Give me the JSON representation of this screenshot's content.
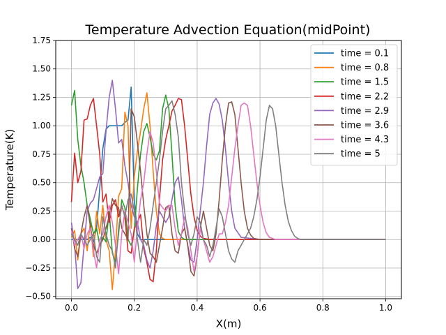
{
  "chart_data": {
    "type": "line",
    "title": "Temperature Advection Equation(midPoint)",
    "xlabel": "X(m)",
    "ylabel": "Temperature(K)",
    "xlim": [
      -0.05,
      1.05
    ],
    "ylim": [
      -0.52,
      1.75
    ],
    "x_ticks": [
      0.0,
      0.2,
      0.4,
      0.6,
      0.8,
      1.0
    ],
    "x_tick_labels": [
      "0.0",
      "0.2",
      "0.4",
      "0.6",
      "0.8",
      "1.0"
    ],
    "y_ticks": [
      -0.5,
      -0.25,
      0.0,
      0.25,
      0.5,
      0.75,
      1.0,
      1.25,
      1.5,
      1.75
    ],
    "y_tick_labels": [
      "−0.50",
      "−0.25",
      "0.00",
      "0.25",
      "0.50",
      "0.75",
      "1.00",
      "1.25",
      "1.50",
      "1.75"
    ],
    "grid": true,
    "legend_position": "top-right",
    "series": [
      {
        "name": "time = 0.1",
        "color": "#1f77b4",
        "x": [
          0,
          0.01,
          0.02,
          0.03,
          0.04,
          0.05,
          0.06,
          0.07,
          0.08,
          0.09,
          0.1,
          0.11,
          0.12,
          0.13,
          0.14,
          0.15,
          0.16,
          0.17,
          0.18,
          0.19,
          0.2,
          0.21,
          0.22,
          0.23,
          0.25,
          0.3,
          0.4,
          0.6,
          1.0
        ],
        "y": [
          0.0,
          0.0,
          0.0,
          0.0,
          0.0,
          0.0,
          0.02,
          -0.02,
          0.1,
          0.45,
          0.8,
          0.97,
          1.0,
          1.0,
          1.0,
          1.0,
          1.0,
          1.03,
          1.05,
          1.34,
          0.35,
          0.05,
          0.0,
          0.0,
          0.0,
          0.0,
          0.0,
          0.0,
          0.0
        ]
      },
      {
        "name": "time = 0.8",
        "color": "#ff7f0e",
        "x": [
          0,
          0.01,
          0.02,
          0.03,
          0.04,
          0.05,
          0.06,
          0.07,
          0.08,
          0.09,
          0.1,
          0.11,
          0.12,
          0.13,
          0.14,
          0.15,
          0.16,
          0.17,
          0.18,
          0.19,
          0.2,
          0.21,
          0.22,
          0.23,
          0.24,
          0.25,
          0.26,
          0.27,
          0.28,
          0.29,
          0.3,
          0.32,
          0.35,
          0.4,
          0.6,
          1.0
        ],
        "y": [
          0.02,
          0.08,
          -0.18,
          0.05,
          0.1,
          -0.1,
          0.15,
          -0.15,
          0.25,
          0.05,
          0.3,
          0.0,
          -0.1,
          -0.44,
          -0.1,
          0.38,
          0.45,
          1.12,
          1.0,
          0.1,
          0.55,
          0.78,
          0.95,
          1.15,
          1.29,
          1.0,
          0.6,
          0.25,
          0.05,
          0.01,
          0.0,
          0.0,
          0.0,
          0.0,
          0.0,
          0.0
        ]
      },
      {
        "name": "time = 1.5",
        "color": "#2ca02c",
        "x": [
          0,
          0.01,
          0.02,
          0.03,
          0.04,
          0.05,
          0.06,
          0.07,
          0.08,
          0.09,
          0.1,
          0.11,
          0.12,
          0.13,
          0.14,
          0.15,
          0.16,
          0.17,
          0.18,
          0.19,
          0.2,
          0.21,
          0.22,
          0.23,
          0.24,
          0.25,
          0.26,
          0.27,
          0.28,
          0.29,
          0.3,
          0.31,
          0.32,
          0.33,
          0.34,
          0.35,
          0.36,
          0.38,
          0.4,
          0.45,
          0.6,
          1.0
        ],
        "y": [
          1.18,
          1.31,
          0.88,
          0.65,
          0.5,
          0.3,
          0.18,
          0.05,
          0.1,
          -0.05,
          0.02,
          -0.02,
          0.25,
          -0.12,
          -0.2,
          0.05,
          0.35,
          0.28,
          0.0,
          -0.05,
          0.07,
          0.45,
          0.75,
          0.95,
          1.02,
          0.9,
          0.75,
          0.7,
          0.78,
          1.15,
          1.27,
          1.15,
          0.75,
          0.3,
          0.07,
          0.02,
          0.0,
          0.0,
          0.0,
          0.0,
          0.0,
          0.0
        ]
      },
      {
        "name": "time = 2.2",
        "color": "#d62728",
        "x": [
          0,
          0.01,
          0.02,
          0.03,
          0.04,
          0.05,
          0.06,
          0.07,
          0.08,
          0.09,
          0.1,
          0.11,
          0.12,
          0.13,
          0.14,
          0.15,
          0.16,
          0.17,
          0.18,
          0.19,
          0.2,
          0.21,
          0.22,
          0.23,
          0.24,
          0.25,
          0.26,
          0.27,
          0.28,
          0.29,
          0.3,
          0.31,
          0.32,
          0.33,
          0.34,
          0.35,
          0.36,
          0.37,
          0.38,
          0.39,
          0.4,
          0.41,
          0.42,
          0.44,
          0.46,
          0.5,
          0.6,
          1.0
        ],
        "y": [
          0.33,
          0.76,
          0.5,
          0.6,
          1.05,
          1.06,
          1.18,
          1.24,
          1.0,
          0.75,
          0.33,
          0.4,
          0.15,
          0.3,
          0.35,
          0.2,
          0.3,
          0.2,
          -0.1,
          -0.12,
          0.1,
          0.15,
          0.22,
          -0.08,
          -0.2,
          -0.35,
          -0.37,
          -0.1,
          0.35,
          0.7,
          0.88,
          1.0,
          1.13,
          1.18,
          1.24,
          1.23,
          1.0,
          0.7,
          0.4,
          0.2,
          0.08,
          0.03,
          0.01,
          0.0,
          0.0,
          0.0,
          0.0,
          0.0
        ]
      },
      {
        "name": "time = 2.9",
        "color": "#9467bd",
        "x": [
          0,
          0.01,
          0.02,
          0.03,
          0.04,
          0.05,
          0.06,
          0.07,
          0.08,
          0.09,
          0.1,
          0.11,
          0.12,
          0.13,
          0.14,
          0.15,
          0.16,
          0.17,
          0.18,
          0.19,
          0.2,
          0.21,
          0.22,
          0.23,
          0.24,
          0.25,
          0.26,
          0.27,
          0.28,
          0.29,
          0.3,
          0.31,
          0.32,
          0.33,
          0.34,
          0.35,
          0.36,
          0.37,
          0.38,
          0.39,
          0.4,
          0.41,
          0.42,
          0.43,
          0.44,
          0.45,
          0.46,
          0.47,
          0.48,
          0.49,
          0.5,
          0.51,
          0.52,
          0.54,
          0.6,
          1.0
        ],
        "y": [
          0.15,
          -0.05,
          -0.43,
          -0.38,
          -0.05,
          0.25,
          0.32,
          0.35,
          0.45,
          0.55,
          0.58,
          0.95,
          1.25,
          1.4,
          1.15,
          0.85,
          0.88,
          0.65,
          0.5,
          0.3,
          0.2,
          0.15,
          0.0,
          -0.05,
          -0.18,
          -0.25,
          -0.1,
          0.12,
          0.25,
          0.2,
          0.15,
          0.2,
          0.35,
          0.5,
          0.55,
          0.35,
          0.1,
          -0.05,
          -0.18,
          -0.2,
          0.0,
          0.25,
          0.5,
          0.82,
          1.1,
          1.2,
          1.24,
          1.19,
          1.05,
          0.8,
          0.5,
          0.25,
          0.1,
          0.02,
          0.0,
          0.0
        ]
      },
      {
        "name": "time = 3.6",
        "color": "#8c564b",
        "x": [
          0,
          0.01,
          0.02,
          0.03,
          0.04,
          0.05,
          0.06,
          0.07,
          0.08,
          0.09,
          0.1,
          0.11,
          0.12,
          0.13,
          0.14,
          0.15,
          0.16,
          0.17,
          0.18,
          0.19,
          0.2,
          0.21,
          0.22,
          0.23,
          0.24,
          0.25,
          0.26,
          0.27,
          0.28,
          0.29,
          0.3,
          0.31,
          0.32,
          0.33,
          0.34,
          0.35,
          0.36,
          0.37,
          0.38,
          0.39,
          0.4,
          0.41,
          0.42,
          0.43,
          0.44,
          0.45,
          0.46,
          0.47,
          0.48,
          0.49,
          0.5,
          0.51,
          0.52,
          0.53,
          0.54,
          0.55,
          0.56,
          0.57,
          0.58,
          0.6,
          0.62,
          0.65,
          0.7,
          1.0
        ],
        "y": [
          0.1,
          -0.08,
          -0.15,
          0.05,
          0.2,
          0.3,
          0.12,
          -0.05,
          -0.12,
          -0.05,
          0.0,
          0.1,
          0.2,
          0.36,
          0.3,
          0.28,
          0.1,
          0.05,
          0.0,
          1.15,
          1.08,
          0.85,
          0.6,
          0.3,
          0.05,
          -0.12,
          -0.15,
          -0.2,
          -0.05,
          0.1,
          0.28,
          0.3,
          0.05,
          -0.1,
          -0.12,
          0.05,
          0.1,
          -0.05,
          -0.28,
          -0.32,
          -0.15,
          0.1,
          0.25,
          0.1,
          -0.05,
          -0.1,
          0.05,
          0.35,
          0.7,
          1.0,
          1.2,
          1.21,
          1.1,
          0.8,
          0.5,
          0.25,
          0.1,
          0.04,
          0.01,
          0.0,
          0.0,
          0.0,
          0.0,
          0.0
        ]
      },
      {
        "name": "time = 4.3",
        "color": "#e377c2",
        "x": [
          0,
          0.01,
          0.02,
          0.03,
          0.04,
          0.05,
          0.06,
          0.07,
          0.08,
          0.09,
          0.1,
          0.11,
          0.12,
          0.13,
          0.14,
          0.15,
          0.16,
          0.17,
          0.18,
          0.19,
          0.2,
          0.21,
          0.22,
          0.23,
          0.24,
          0.25,
          0.26,
          0.27,
          0.28,
          0.29,
          0.3,
          0.31,
          0.32,
          0.33,
          0.34,
          0.35,
          0.36,
          0.37,
          0.38,
          0.39,
          0.4,
          0.41,
          0.42,
          0.43,
          0.44,
          0.45,
          0.46,
          0.47,
          0.48,
          0.49,
          0.5,
          0.51,
          0.52,
          0.53,
          0.54,
          0.55,
          0.56,
          0.57,
          0.58,
          0.59,
          0.6,
          0.61,
          0.62,
          0.63,
          0.64,
          0.65,
          0.66,
          0.68,
          0.7,
          0.75,
          1.0
        ],
        "y": [
          0.08,
          -0.05,
          0.0,
          0.05,
          -0.08,
          0.05,
          0.1,
          -0.1,
          -0.25,
          0.0,
          0.05,
          0.2,
          0.3,
          0.15,
          -0.05,
          -0.3,
          0.05,
          0.25,
          0.15,
          0.05,
          -0.2,
          0.1,
          0.35,
          0.5,
          0.75,
          0.95,
          0.85,
          0.6,
          0.32,
          0.28,
          0.25,
          0.3,
          0.3,
          0.1,
          -0.05,
          0.05,
          0.2,
          0.1,
          -0.1,
          -0.28,
          -0.15,
          0.1,
          0.0,
          -0.1,
          -0.2,
          -0.15,
          -0.05,
          0.05,
          0.05,
          0.15,
          0.3,
          0.55,
          0.8,
          1.0,
          1.18,
          1.2,
          1.18,
          1.0,
          0.75,
          0.5,
          0.3,
          0.15,
          0.06,
          0.02,
          0.01,
          0.0,
          0.0,
          0.0,
          0.0,
          0.0,
          0.0
        ]
      },
      {
        "name": "time = 5",
        "color": "#7f7f7f",
        "x": [
          0,
          0.01,
          0.02,
          0.03,
          0.04,
          0.05,
          0.06,
          0.07,
          0.08,
          0.09,
          0.1,
          0.11,
          0.12,
          0.13,
          0.14,
          0.15,
          0.16,
          0.17,
          0.18,
          0.19,
          0.2,
          0.21,
          0.22,
          0.23,
          0.24,
          0.25,
          0.26,
          0.27,
          0.28,
          0.29,
          0.3,
          0.31,
          0.32,
          0.33,
          0.34,
          0.35,
          0.36,
          0.37,
          0.38,
          0.39,
          0.4,
          0.41,
          0.42,
          0.43,
          0.44,
          0.45,
          0.46,
          0.47,
          0.48,
          0.49,
          0.5,
          0.51,
          0.52,
          0.53,
          0.54,
          0.55,
          0.56,
          0.57,
          0.58,
          0.59,
          0.6,
          0.61,
          0.62,
          0.63,
          0.64,
          0.65,
          0.66,
          0.67,
          0.68,
          0.69,
          0.7,
          0.71,
          0.72,
          0.73,
          0.74,
          0.75,
          0.76,
          0.78,
          0.8,
          0.85,
          1.0
        ],
        "y": [
          0.05,
          0.0,
          -0.05,
          0.05,
          0.0,
          -0.05,
          0.0,
          0.05,
          -0.15,
          -0.2,
          0.2,
          0.05,
          -0.05,
          -0.1,
          -0.25,
          0.1,
          0.3,
          0.2,
          0.35,
          0.4,
          0.25,
          0.0,
          -0.2,
          0.0,
          -0.05,
          0.1,
          0.3,
          0.5,
          0.7,
          0.95,
          1.15,
          1.18,
          1.22,
          1.1,
          0.9,
          0.5,
          0.25,
          0.05,
          -0.05,
          0.05,
          0.2,
          0.15,
          0.0,
          -0.05,
          -0.15,
          -0.05,
          0.1,
          0.27,
          0.2,
          0.05,
          -0.1,
          -0.17,
          -0.2,
          -0.1,
          -0.05,
          0.0,
          0.05,
          0.1,
          0.2,
          0.35,
          0.55,
          0.8,
          1.05,
          1.18,
          1.15,
          1.0,
          0.75,
          0.5,
          0.3,
          0.16,
          0.08,
          0.03,
          0.01,
          0.0,
          0.0,
          0.0,
          0.0,
          0.0,
          0.0,
          0.0,
          0.0
        ]
      }
    ]
  }
}
